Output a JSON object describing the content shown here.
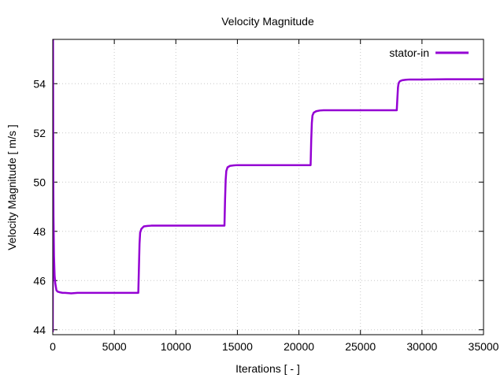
{
  "chart_data": {
    "type": "line",
    "title": "Velocity Magnitude",
    "xlabel": "Iterations [ - ]",
    "ylabel": "Velocity Magnitude [ m/s ]",
    "xlim": [
      0,
      35000
    ],
    "ylim": [
      43.8,
      55.8
    ],
    "xticks": [
      0,
      5000,
      10000,
      15000,
      20000,
      25000,
      30000,
      35000
    ],
    "yticks": [
      44,
      46,
      48,
      50,
      52,
      54
    ],
    "grid": true,
    "legend_position": "top-right",
    "series": [
      {
        "name": "stator-in",
        "color": "#9400d3",
        "x": [
          0,
          20,
          40,
          60,
          100,
          150,
          200,
          300,
          400,
          600,
          800,
          1000,
          1500,
          2000,
          2500,
          3000,
          4000,
          5000,
          6000,
          6950,
          7000,
          7050,
          7100,
          7200,
          7400,
          7700,
          8000,
          9000,
          10000,
          12000,
          13950,
          14000,
          14050,
          14100,
          14200,
          14400,
          14700,
          15000,
          16000,
          18000,
          20950,
          21000,
          21050,
          21100,
          21200,
          21400,
          21700,
          22000,
          24000,
          26000,
          27950,
          28000,
          28050,
          28100,
          28200,
          28400,
          28700,
          29000,
          30000,
          32000,
          35000
        ],
        "y": [
          43.9,
          55.8,
          50.5,
          48.6,
          47.0,
          46.2,
          45.9,
          45.6,
          45.55,
          45.52,
          45.5,
          45.5,
          45.48,
          45.5,
          45.5,
          45.5,
          45.5,
          45.5,
          45.5,
          45.5,
          46.5,
          47.5,
          47.95,
          48.1,
          48.2,
          48.22,
          48.23,
          48.23,
          48.23,
          48.23,
          48.23,
          49.3,
          50.1,
          50.45,
          50.6,
          50.66,
          50.68,
          50.69,
          50.69,
          50.69,
          50.69,
          51.7,
          52.4,
          52.7,
          52.82,
          52.88,
          52.91,
          52.92,
          52.92,
          52.92,
          52.92,
          53.4,
          53.85,
          54.02,
          54.1,
          54.14,
          54.16,
          54.17,
          54.17,
          54.18,
          54.18
        ]
      }
    ]
  }
}
